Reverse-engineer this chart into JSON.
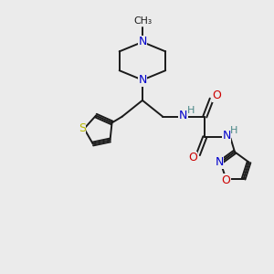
{
  "background_color": "#ebebeb",
  "bond_color": "#1a1a1a",
  "n_color": "#0000cc",
  "o_color": "#cc0000",
  "s_color": "#b8b800",
  "h_color": "#4a8888",
  "figsize": [
    3.0,
    3.0
  ],
  "dpi": 100,
  "xlim": [
    0,
    10
  ],
  "ylim": [
    0,
    10
  ]
}
